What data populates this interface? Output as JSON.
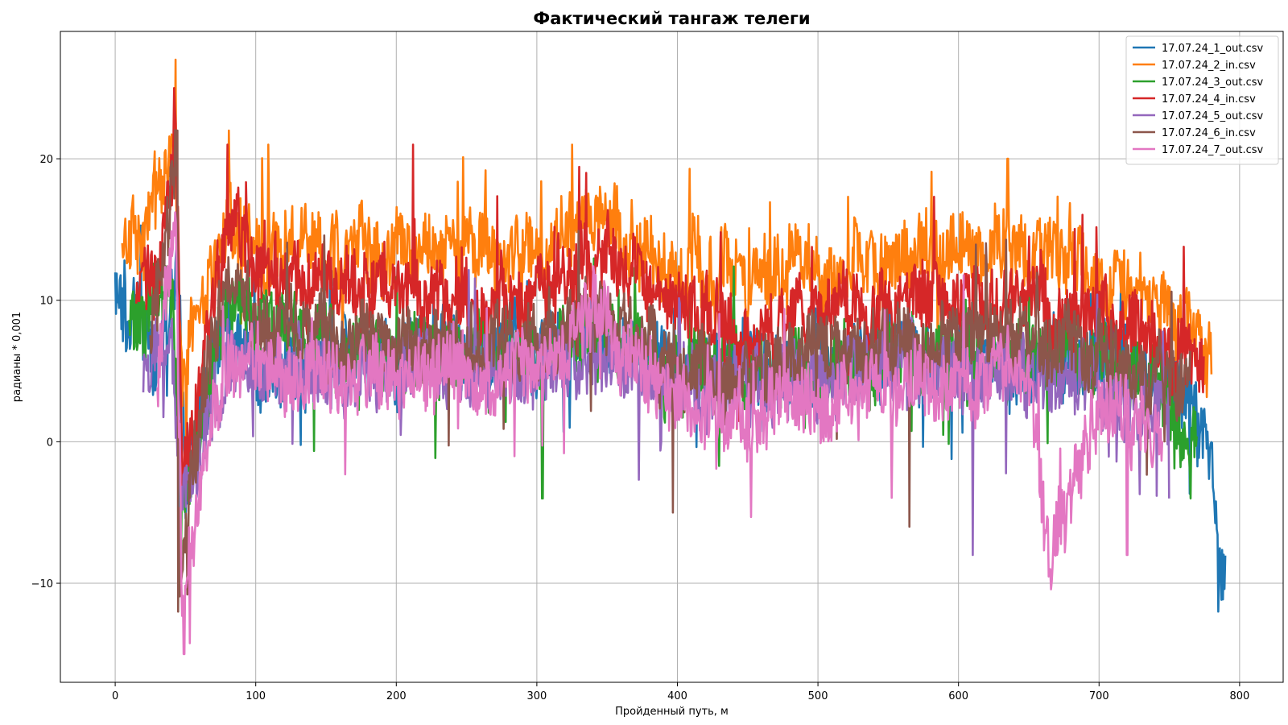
{
  "chart_data": {
    "type": "line",
    "title": "Фактический тангаж телеги",
    "xlabel": "Пройденный путь, м",
    "ylabel": "радианы * 0,001",
    "xlim": [
      -39,
      831
    ],
    "ylim": [
      -17,
      29
    ],
    "xticks": [
      0,
      100,
      200,
      300,
      400,
      500,
      600,
      700,
      800
    ],
    "yticks": [
      -10,
      0,
      10,
      20
    ],
    "ytick_labels": [
      "−10",
      "0",
      "10",
      "20"
    ],
    "grid": true,
    "legend_position": "top-right",
    "series": [
      {
        "name": "17.07.24_1_out.csv",
        "color": "#1f77b4",
        "x_range": [
          0,
          790
        ],
        "anchors": [
          [
            0,
            11.5
          ],
          [
            5,
            8
          ],
          [
            15,
            9
          ],
          [
            30,
            6
          ],
          [
            45,
            12
          ],
          [
            50,
            -4
          ],
          [
            60,
            2
          ],
          [
            80,
            9
          ],
          [
            100,
            6
          ],
          [
            150,
            6
          ],
          [
            200,
            6
          ],
          [
            250,
            6
          ],
          [
            300,
            6
          ],
          [
            350,
            7
          ],
          [
            400,
            5
          ],
          [
            450,
            5
          ],
          [
            500,
            5
          ],
          [
            550,
            6
          ],
          [
            600,
            6
          ],
          [
            650,
            6
          ],
          [
            700,
            6
          ],
          [
            740,
            5
          ],
          [
            760,
            3
          ],
          [
            780,
            1
          ],
          [
            785,
            -8
          ],
          [
            790,
            -11
          ]
        ],
        "noise": 3.0,
        "spikes": [
          [
            45,
            -10
          ],
          [
            785,
            -12
          ]
        ]
      },
      {
        "name": "17.07.24_2_in.csv",
        "color": "#ff7f0e",
        "x_range": [
          5,
          780
        ],
        "anchors": [
          [
            5,
            14
          ],
          [
            20,
            14
          ],
          [
            42,
            22
          ],
          [
            48,
            2
          ],
          [
            55,
            9
          ],
          [
            70,
            12
          ],
          [
            80,
            15
          ],
          [
            100,
            14
          ],
          [
            150,
            14
          ],
          [
            200,
            14
          ],
          [
            250,
            14
          ],
          [
            300,
            13
          ],
          [
            330,
            16
          ],
          [
            350,
            15
          ],
          [
            400,
            12
          ],
          [
            450,
            12
          ],
          [
            500,
            12
          ],
          [
            550,
            13
          ],
          [
            600,
            13
          ],
          [
            650,
            14
          ],
          [
            700,
            12
          ],
          [
            750,
            9
          ],
          [
            770,
            8
          ],
          [
            780,
            7
          ]
        ],
        "noise": 3.0,
        "spikes": [
          [
            43,
            27
          ],
          [
            81,
            22
          ],
          [
            109,
            21
          ],
          [
            325,
            21
          ],
          [
            635,
            20
          ]
        ]
      },
      {
        "name": "17.07.24_3_out.csv",
        "color": "#2ca02c",
        "x_range": [
          10,
          770
        ],
        "anchors": [
          [
            10,
            9
          ],
          [
            20,
            7
          ],
          [
            40,
            12
          ],
          [
            48,
            -5
          ],
          [
            60,
            1
          ],
          [
            80,
            10
          ],
          [
            100,
            8
          ],
          [
            150,
            7
          ],
          [
            200,
            6
          ],
          [
            250,
            6
          ],
          [
            300,
            6
          ],
          [
            350,
            7
          ],
          [
            400,
            5
          ],
          [
            450,
            5
          ],
          [
            500,
            5
          ],
          [
            550,
            6
          ],
          [
            600,
            6
          ],
          [
            650,
            6
          ],
          [
            700,
            6
          ],
          [
            740,
            4
          ],
          [
            760,
            1
          ],
          [
            770,
            0
          ]
        ],
        "noise": 3.0,
        "spikes": [
          [
            47,
            -8
          ],
          [
            304,
            -4
          ],
          [
            765,
            -4
          ]
        ]
      },
      {
        "name": "17.07.24_4_in.csv",
        "color": "#d62728",
        "x_range": [
          15,
          775
        ],
        "anchors": [
          [
            15,
            11
          ],
          [
            30,
            11
          ],
          [
            43,
            22
          ],
          [
            48,
            -3
          ],
          [
            60,
            4
          ],
          [
            80,
            16
          ],
          [
            100,
            12
          ],
          [
            150,
            11
          ],
          [
            200,
            11
          ],
          [
            250,
            10
          ],
          [
            300,
            10
          ],
          [
            330,
            13
          ],
          [
            350,
            13
          ],
          [
            400,
            9
          ],
          [
            450,
            8
          ],
          [
            500,
            9
          ],
          [
            550,
            10
          ],
          [
            600,
            10
          ],
          [
            650,
            10
          ],
          [
            700,
            9
          ],
          [
            750,
            7
          ],
          [
            775,
            5
          ]
        ],
        "noise": 3.0,
        "spikes": [
          [
            42,
            25
          ],
          [
            80,
            21
          ],
          [
            212,
            21
          ],
          [
            335,
            19
          ]
        ]
      },
      {
        "name": "17.07.24_5_out.csv",
        "color": "#9467bd",
        "x_range": [
          20,
          750
        ],
        "anchors": [
          [
            20,
            4
          ],
          [
            40,
            8
          ],
          [
            48,
            -5
          ],
          [
            60,
            -2
          ],
          [
            80,
            6
          ],
          [
            100,
            5
          ],
          [
            150,
            5
          ],
          [
            200,
            5
          ],
          [
            250,
            5
          ],
          [
            300,
            5
          ],
          [
            350,
            6
          ],
          [
            400,
            4
          ],
          [
            450,
            4
          ],
          [
            500,
            4
          ],
          [
            550,
            5
          ],
          [
            600,
            5
          ],
          [
            650,
            5
          ],
          [
            700,
            4
          ],
          [
            750,
            2
          ]
        ],
        "noise": 3.0,
        "spikes": [
          [
            610,
            -8
          ],
          [
            750,
            -4
          ]
        ]
      },
      {
        "name": "17.07.24_6_in.csv",
        "color": "#8c564b",
        "x_range": [
          25,
          765
        ],
        "anchors": [
          [
            25,
            7
          ],
          [
            43,
            20
          ],
          [
            46,
            -11
          ],
          [
            60,
            2
          ],
          [
            80,
            12
          ],
          [
            100,
            8
          ],
          [
            150,
            8
          ],
          [
            200,
            7
          ],
          [
            250,
            7
          ],
          [
            300,
            7
          ],
          [
            350,
            9
          ],
          [
            400,
            5
          ],
          [
            450,
            5
          ],
          [
            500,
            6
          ],
          [
            550,
            7
          ],
          [
            600,
            7
          ],
          [
            650,
            8
          ],
          [
            700,
            6
          ],
          [
            765,
            4
          ]
        ],
        "noise": 3.0,
        "spikes": [
          [
            44,
            22
          ],
          [
            45,
            -12
          ],
          [
            397,
            -5
          ],
          [
            565,
            -6
          ]
        ]
      },
      {
        "name": "17.07.24_7_out.csv",
        "color": "#e377c2",
        "x_range": [
          30,
          745
        ],
        "anchors": [
          [
            30,
            4
          ],
          [
            43,
            16
          ],
          [
            48,
            -12
          ],
          [
            60,
            -3
          ],
          [
            80,
            6
          ],
          [
            100,
            5
          ],
          [
            150,
            5
          ],
          [
            200,
            5
          ],
          [
            250,
            5
          ],
          [
            300,
            4
          ],
          [
            340,
            10
          ],
          [
            350,
            8
          ],
          [
            400,
            3
          ],
          [
            450,
            2
          ],
          [
            500,
            3
          ],
          [
            550,
            4
          ],
          [
            600,
            4
          ],
          [
            650,
            5
          ],
          [
            665,
            -8
          ],
          [
            700,
            3
          ],
          [
            745,
            0
          ]
        ],
        "noise": 3.0,
        "spikes": [
          [
            49,
            -15
          ],
          [
            665,
            -9
          ],
          [
            720,
            -8
          ]
        ]
      }
    ]
  }
}
